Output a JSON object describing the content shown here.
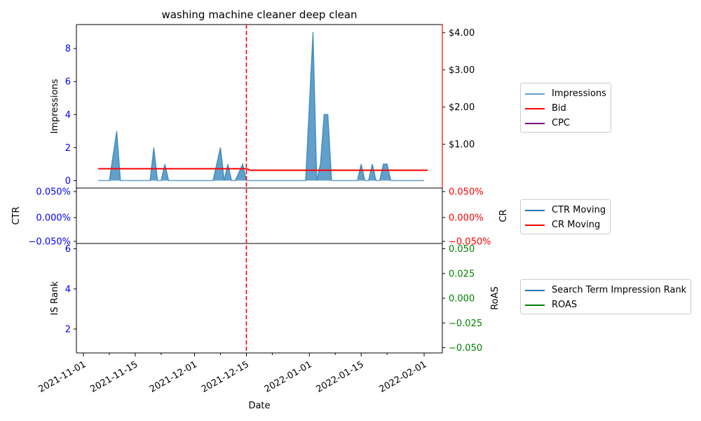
{
  "chart_data": {
    "title": "washing machine cleaner deep clean",
    "xlabel": "Date",
    "x_ticks": [
      "2021-11-01",
      "2021-11-15",
      "2021-12-01",
      "2021-12-15",
      "2022-01-01",
      "2022-01-15",
      "2022-02-01"
    ],
    "vline": {
      "date": "2021-12-15",
      "color": "#ff0000",
      "style": "dashed"
    },
    "panels": [
      {
        "type": "area+line",
        "ylabel_left": "Impressions",
        "ylabel_right": "",
        "left_ticks": [
          "0",
          "2",
          "4",
          "6",
          "8"
        ],
        "right_ticks": [
          "$1.00",
          "$2.00",
          "$3.00",
          "$4.00"
        ],
        "left_color": "#0000ff",
        "right_color": "#ff0000",
        "ylim_left": [
          -0.45,
          9.45
        ],
        "ylim_right": [
          -0.18,
          4.22
        ],
        "series": [
          {
            "name": "Impressions",
            "color": "#1f77b4",
            "axis": "left",
            "x": [
              "2021-11-05",
              "2021-11-08",
              "2021-11-10",
              "2021-11-11",
              "2021-11-19",
              "2021-11-20",
              "2021-11-21",
              "2021-11-22",
              "2021-11-23",
              "2021-11-24",
              "2021-12-06",
              "2021-12-08",
              "2021-12-09",
              "2021-12-10",
              "2021-12-11",
              "2021-12-12",
              "2021-12-14",
              "2021-12-15",
              "2021-12-16",
              "2021-12-31",
              "2022-01-02",
              "2022-01-03",
              "2022-01-04",
              "2022-01-05",
              "2022-01-06",
              "2022-01-07",
              "2022-01-08",
              "2022-01-14",
              "2022-01-15",
              "2022-01-16",
              "2022-01-17",
              "2022-01-18",
              "2022-01-19",
              "2022-01-20",
              "2022-01-21",
              "2022-01-22",
              "2022-01-23",
              "2022-02-01"
            ],
            "values": [
              0,
              0,
              3,
              0,
              0,
              2,
              0,
              0,
              1,
              0,
              0,
              2,
              0,
              1,
              0,
              0,
              1,
              0,
              0,
              0,
              9,
              0,
              1,
              4,
              4,
              0,
              0,
              0,
              1,
              0,
              0,
              1,
              0,
              0,
              1,
              1,
              0,
              0
            ]
          },
          {
            "name": "Bid",
            "color": "#ff0000",
            "axis": "right",
            "x": [
              "2021-11-05",
              "2021-12-15",
              "2021-12-16",
              "2022-02-02"
            ],
            "values": [
              0.34,
              0.34,
              0.3,
              0.3
            ]
          },
          {
            "name": "CPC",
            "color": "#800080",
            "axis": "right",
            "x": [],
            "values": []
          }
        ]
      },
      {
        "type": "line",
        "ylabel_left": "CTR",
        "ylabel_right": "CR",
        "left_ticks": [
          "0.050%",
          "0.000%",
          "−0.050%"
        ],
        "right_ticks": [
          "0.050%",
          "0.000%",
          "−0.050%"
        ],
        "left_color": "#0000ff",
        "right_color": "#ff0000",
        "series": [
          {
            "name": "CTR Moving",
            "color": "#1f77b4",
            "values": []
          },
          {
            "name": "CR Moving",
            "color": "#ff0000",
            "values": []
          }
        ]
      },
      {
        "type": "line",
        "ylabel_left": "IS Rank",
        "ylabel_right": "RoAS",
        "left_ticks": [
          "2",
          "4",
          "6"
        ],
        "right_ticks": [
          "−0.050",
          "−0.025",
          "0.000",
          "0.025",
          "0.050"
        ],
        "left_color": "#0000ff",
        "right_color": "#008000",
        "series": [
          {
            "name": "Search Term Impression Rank",
            "color": "#1f77b4",
            "values": []
          },
          {
            "name": "ROAS",
            "color": "#008000",
            "values": []
          }
        ]
      }
    ]
  }
}
